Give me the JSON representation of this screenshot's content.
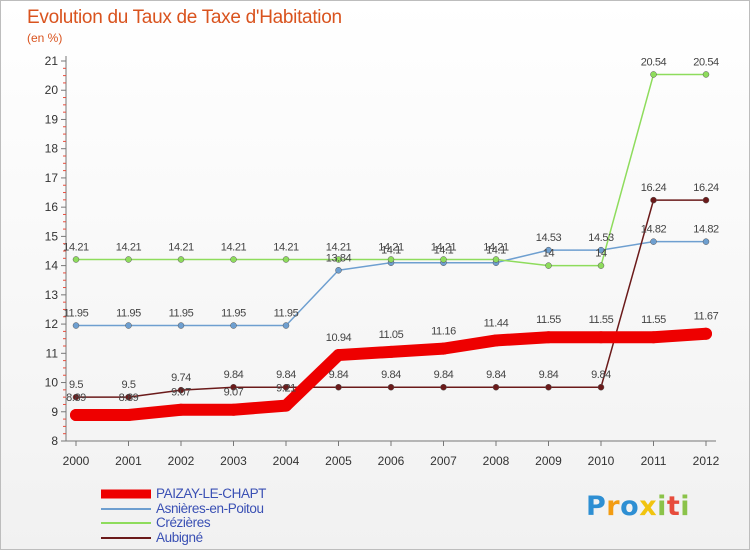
{
  "chart_data": {
    "type": "line",
    "title": "Evolution du Taux de Taxe d'Habitation",
    "unit_label": "(en %)",
    "xlabel": "",
    "ylabel": "",
    "ylim": [
      8,
      21
    ],
    "yticks": [
      8,
      9,
      10,
      11,
      12,
      13,
      14,
      15,
      16,
      17,
      18,
      19,
      20,
      21
    ],
    "x": [
      "2000",
      "2001",
      "2002",
      "2003",
      "2004",
      "2005",
      "2006",
      "2007",
      "2008",
      "2009",
      "2010",
      "2011",
      "2012"
    ],
    "series": [
      {
        "name": "PAIZAY-LE-CHAPT",
        "color": "#ee0000",
        "values": [
          8.89,
          8.89,
          9.07,
          9.07,
          9.21,
          10.94,
          11.05,
          11.16,
          11.44,
          11.55,
          11.55,
          11.55,
          11.67
        ]
      },
      {
        "name": "Asnières-en-Poitou",
        "color": "#6e9fd0",
        "values": [
          11.95,
          11.95,
          11.95,
          11.95,
          11.95,
          13.84,
          14.1,
          14.1,
          14.1,
          14.53,
          14.53,
          14.82,
          14.82
        ]
      },
      {
        "name": "Crézières",
        "color": "#8edc5c",
        "values": [
          14.21,
          14.21,
          14.21,
          14.21,
          14.21,
          14.21,
          14.21,
          14.21,
          14.21,
          14,
          14,
          20.54,
          20.54
        ]
      },
      {
        "name": "Aubigné",
        "color": "#6b1a1a",
        "values": [
          9.5,
          9.5,
          9.74,
          9.84,
          9.84,
          9.84,
          9.84,
          9.84,
          9.84,
          9.84,
          9.84,
          16.24,
          16.24
        ]
      }
    ],
    "grid": false,
    "legend_position": "bottom-left"
  },
  "logo": {
    "letters": [
      "P",
      "r",
      "o",
      "x",
      "i",
      "t",
      "i"
    ],
    "colors": [
      "#2e8fd3",
      "#f39c12",
      "#2e8fd3",
      "#f1c40f",
      "#8bc34a",
      "#e74c3c",
      "#8bc34a"
    ]
  }
}
